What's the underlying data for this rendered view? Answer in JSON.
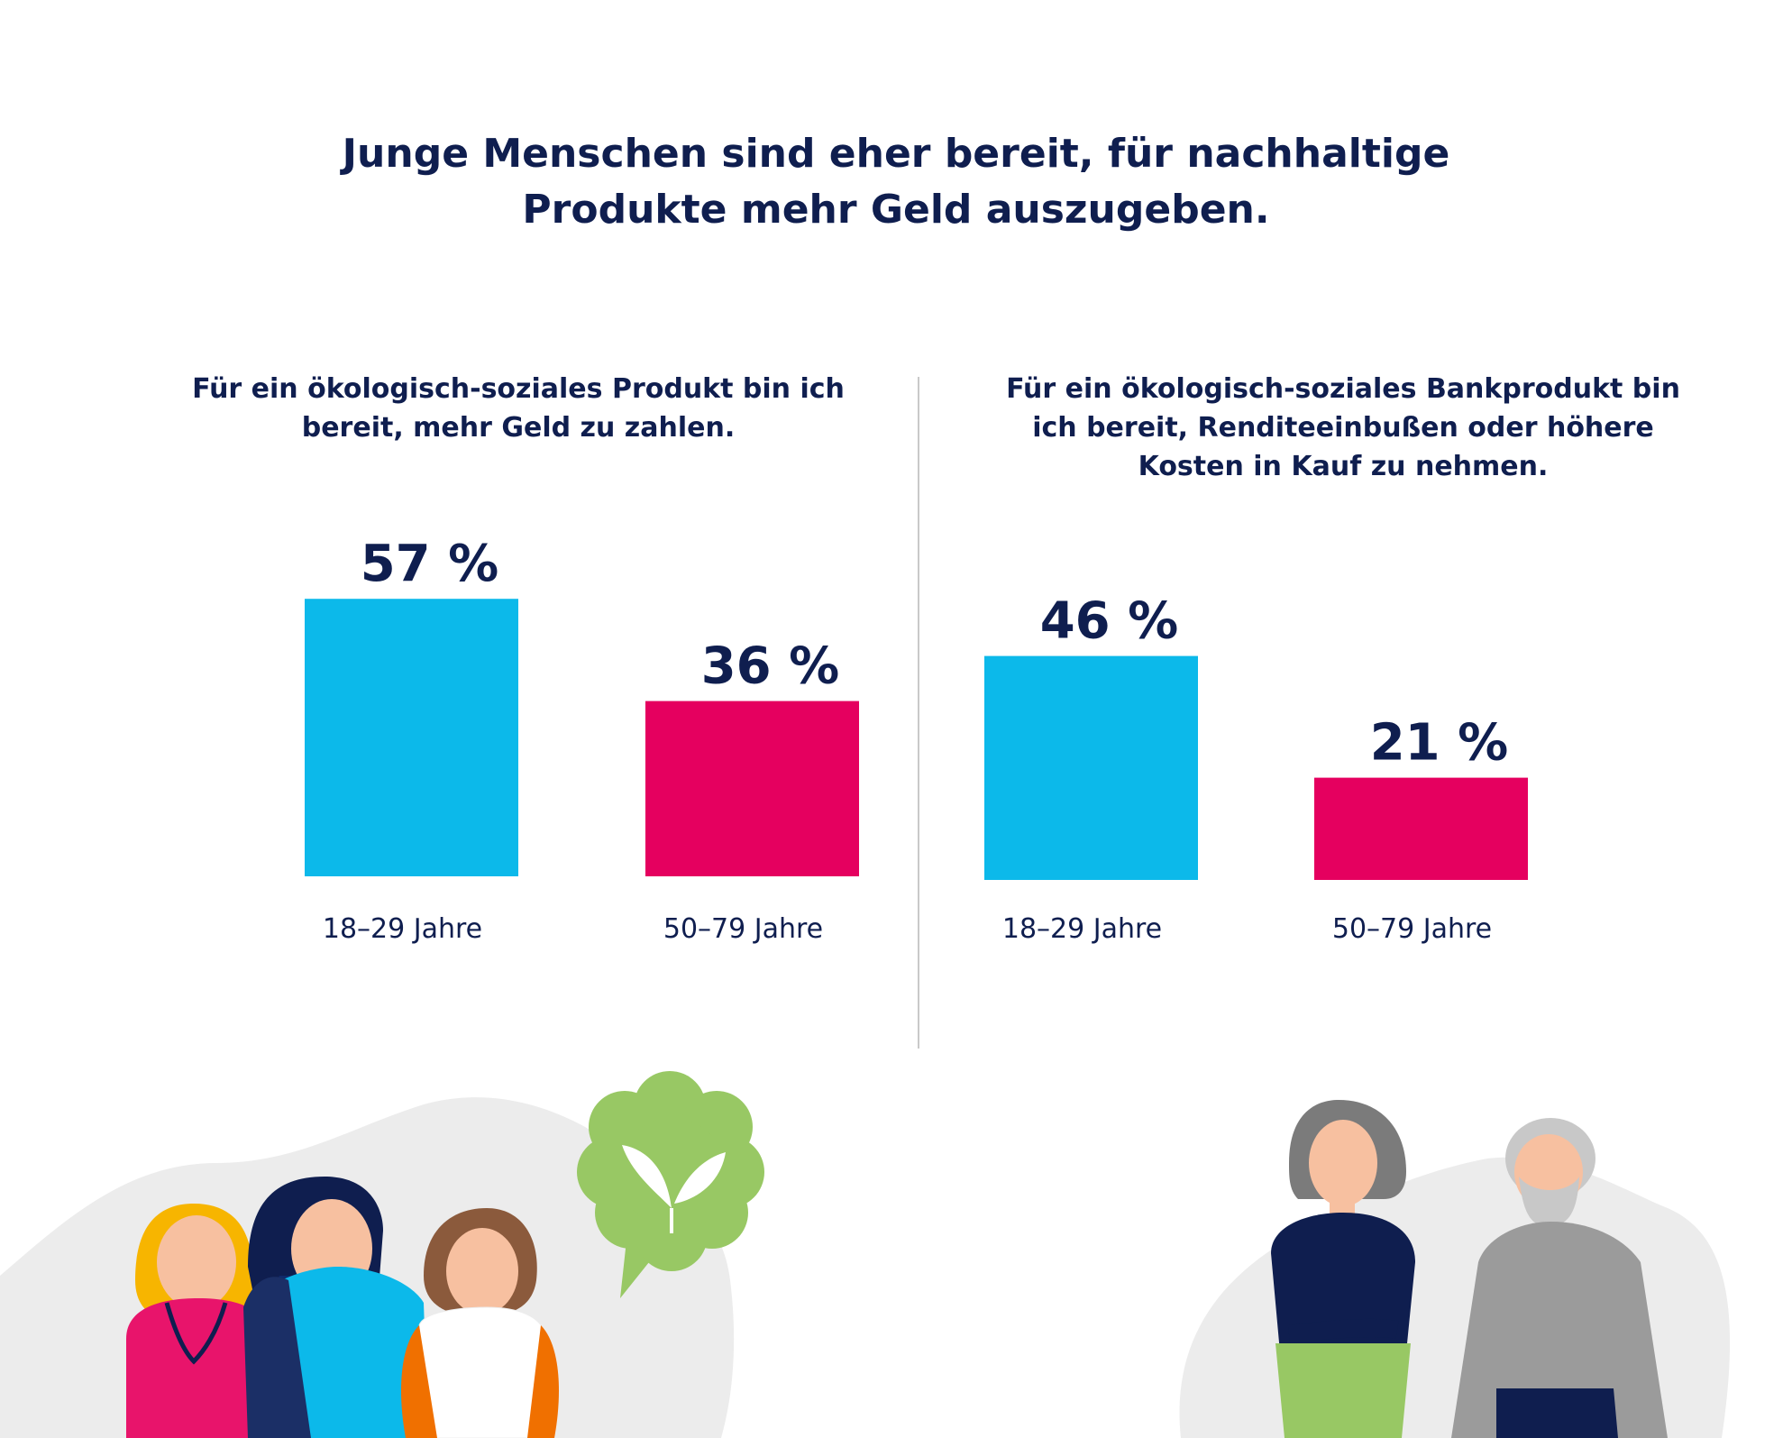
{
  "title": "Junge Menschen sind eher bereit, für nachhaltige Produkte mehr Geld auszugeben.",
  "colors": {
    "text": "#0f1e4f",
    "young": "#0cb9ea",
    "old": "#e5005f",
    "divider": "#c9c9c9"
  },
  "chart_data": [
    {
      "type": "bar",
      "title": "Für ein ökologisch-soziales Produkt bin ich bereit, mehr Geld zu zahlen.",
      "categories": [
        "18–29 Jahre",
        "50–79 Jahre"
      ],
      "values": [
        57,
        36
      ],
      "labels": [
        "57 %",
        "36 %"
      ],
      "unit": "%",
      "xlabel": "",
      "ylabel": "",
      "ylim": [
        0,
        100
      ],
      "grid": false
    },
    {
      "type": "bar",
      "title": "Für ein ökologisch-soziales Bankprodukt bin ich bereit, Renditeeinbußen oder höhere Kosten in Kauf zu nehmen.",
      "categories": [
        "18–29 Jahre",
        "50–79 Jahre"
      ],
      "values": [
        46,
        21
      ],
      "labels": [
        "46 %",
        "21 %"
      ],
      "unit": "%",
      "xlabel": "",
      "ylabel": "",
      "ylim": [
        0,
        100
      ],
      "grid": false
    }
  ],
  "illustrations": {
    "young_group": "young-people-group",
    "speech_bubble": "leaf-speech-bubble-icon",
    "old_couple": "senior-couple"
  }
}
